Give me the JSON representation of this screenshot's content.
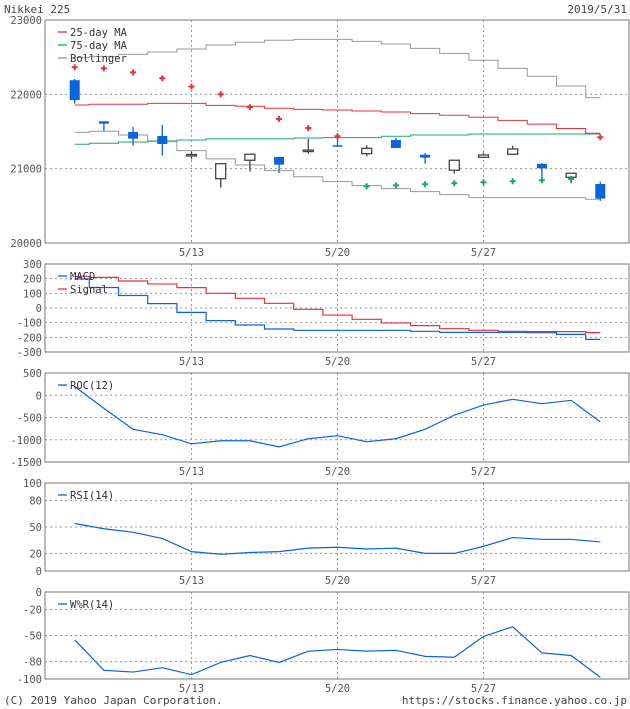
{
  "header": {
    "title": "Nikkei 225",
    "date": "2019/5/31"
  },
  "footer": {
    "copyright": "(C) 2019 Yahoo Japan Corporation.",
    "url": "https://stocks.finance.yahoo.co.jp"
  },
  "colors": {
    "up_body": "#ffffff",
    "up_stroke": "#444444",
    "down": "#0a64dc",
    "ma25": "#e8313a",
    "ma75": "#1aa866",
    "bollinger": "#999999",
    "macd": "#0a64dc",
    "signal": "#e8313a",
    "line": "#0a64dc",
    "grid": "#999999"
  },
  "chart_data": [
    {
      "id": "price",
      "type": "candlestick",
      "dates": [
        "5/7",
        "5/8",
        "5/9",
        "5/10",
        "5/13",
        "5/14",
        "5/15",
        "5/16",
        "5/17",
        "5/20",
        "5/21",
        "5/22",
        "5/23",
        "5/24",
        "5/27",
        "5/28",
        "5/29",
        "5/30",
        "5/31"
      ],
      "xticks": [
        "5/13",
        "5/20",
        "5/27"
      ],
      "ylim": [
        20000,
        23000
      ],
      "yticks": [
        20000,
        21000,
        22000,
        23000
      ],
      "ohlc": [
        [
          22190,
          22206,
          21874,
          21923
        ],
        [
          21637,
          21637,
          21507,
          21605
        ],
        [
          21494,
          21561,
          21310,
          21404
        ],
        [
          21440,
          21588,
          21175,
          21332
        ],
        [
          21190,
          21229,
          21126,
          21191
        ],
        [
          20866,
          21072,
          20745,
          21067
        ],
        [
          21113,
          21194,
          20960,
          21194
        ],
        [
          21157,
          21157,
          20942,
          21054
        ],
        [
          21250,
          21400,
          21202,
          21247
        ],
        [
          21315,
          21449,
          21296,
          21296
        ],
        [
          21202,
          21315,
          21166,
          21274
        ],
        [
          21386,
          21413,
          21278,
          21278
        ],
        [
          21188,
          21211,
          21067,
          21148
        ],
        [
          20979,
          21113,
          20933,
          21113
        ],
        [
          21153,
          21215,
          21153,
          21184
        ],
        [
          21194,
          21310,
          21194,
          21265
        ],
        [
          21063,
          21076,
          20848,
          21005
        ],
        [
          20884,
          20938,
          20803,
          20938
        ],
        [
          20794,
          20825,
          20566,
          20597
        ]
      ],
      "series": [
        {
          "name": "25-day MA",
          "key": "ma25",
          "values": [
            21856,
            21866,
            21866,
            21879,
            21879,
            21852,
            21839,
            21812,
            21798,
            21789,
            21776,
            21762,
            21740,
            21718,
            21691,
            21650,
            21600,
            21540,
            21476
          ]
        },
        {
          "name": "75-day MA",
          "key": "ma75",
          "values": [
            21328,
            21342,
            21359,
            21372,
            21386,
            21400,
            21400,
            21400,
            21413,
            21417,
            21417,
            21436,
            21453,
            21453,
            21467,
            21467,
            21467,
            21467,
            21467
          ]
        },
        {
          "name": "Bollinger",
          "key": "bollinger",
          "upper": [
            22498,
            22510,
            22538,
            22570,
            22610,
            22664,
            22700,
            22727,
            22740,
            22740,
            22713,
            22677,
            22619,
            22551,
            22458,
            22350,
            22243,
            22112,
            21955
          ],
          "lower": [
            21489,
            21503,
            21453,
            21364,
            21243,
            21131,
            21050,
            20973,
            20892,
            20825,
            20772,
            20731,
            20691,
            20651,
            20610,
            20610,
            20610,
            20610,
            20588
          ]
        }
      ],
      "markers_red": [
        22364,
        22350,
        22296,
        22216,
        22103,
        22001,
        21826,
        21668,
        21547,
        21436,
        null,
        null,
        null,
        null,
        null,
        null,
        null,
        null,
        21422
      ],
      "markers_green": [
        null,
        null,
        null,
        null,
        null,
        null,
        null,
        null,
        null,
        null,
        20763,
        20776,
        20790,
        20803,
        20817,
        20830,
        20844,
        20861,
        null
      ]
    },
    {
      "id": "macd",
      "type": "line",
      "ylim": [
        -300,
        300
      ],
      "yticks": [
        300,
        200,
        100,
        0,
        -100,
        -200,
        -300
      ],
      "series": [
        {
          "name": "MACD",
          "key": "macd",
          "values": [
            198,
            140,
            85,
            30,
            -30,
            -86,
            -116,
            -143,
            -152,
            -152,
            -152,
            -152,
            -159,
            -166,
            -166,
            -166,
            -168,
            -180,
            -214
          ]
        },
        {
          "name": "Signal",
          "key": "signal",
          "values": [
            216,
            209,
            184,
            164,
            139,
            100,
            66,
            32,
            -9,
            -48,
            -77,
            -102,
            -120,
            -141,
            -152,
            -159,
            -161,
            -161,
            -168
          ]
        }
      ]
    },
    {
      "id": "roc",
      "type": "line",
      "ylim": [
        -1500,
        500
      ],
      "yticks": [
        500,
        0,
        -500,
        -1000,
        -1500
      ],
      "series": [
        {
          "name": "ROC(12)",
          "key": "line",
          "values": [
            197,
            -295,
            -765,
            -886,
            -1091,
            -1023,
            -1023,
            -1159,
            -977,
            -909,
            -1045,
            -977,
            -765,
            -447,
            -220,
            -91,
            -189,
            -114,
            -598
          ]
        }
      ]
    },
    {
      "id": "rsi",
      "type": "line",
      "ylim": [
        0,
        100
      ],
      "yticks": [
        100,
        80,
        50,
        20,
        0
      ],
      "series": [
        {
          "name": "RSI(14)",
          "key": "line",
          "values": [
            54,
            48,
            44,
            37,
            22,
            19,
            21,
            22,
            26,
            27,
            25,
            26,
            20,
            20,
            28,
            38,
            36,
            36,
            33
          ]
        }
      ]
    },
    {
      "id": "wr",
      "type": "line",
      "ylim": [
        -100,
        0
      ],
      "yticks": [
        0,
        -20,
        -50,
        -80,
        -100
      ],
      "series": [
        {
          "name": "W%R(14)",
          "key": "line",
          "values": [
            -55,
            -90,
            -92,
            -87,
            -95,
            -81,
            -73,
            -81,
            -68,
            -66,
            -68,
            -67,
            -74,
            -75,
            -51,
            -40,
            -70,
            -73,
            -98
          ]
        }
      ]
    }
  ]
}
